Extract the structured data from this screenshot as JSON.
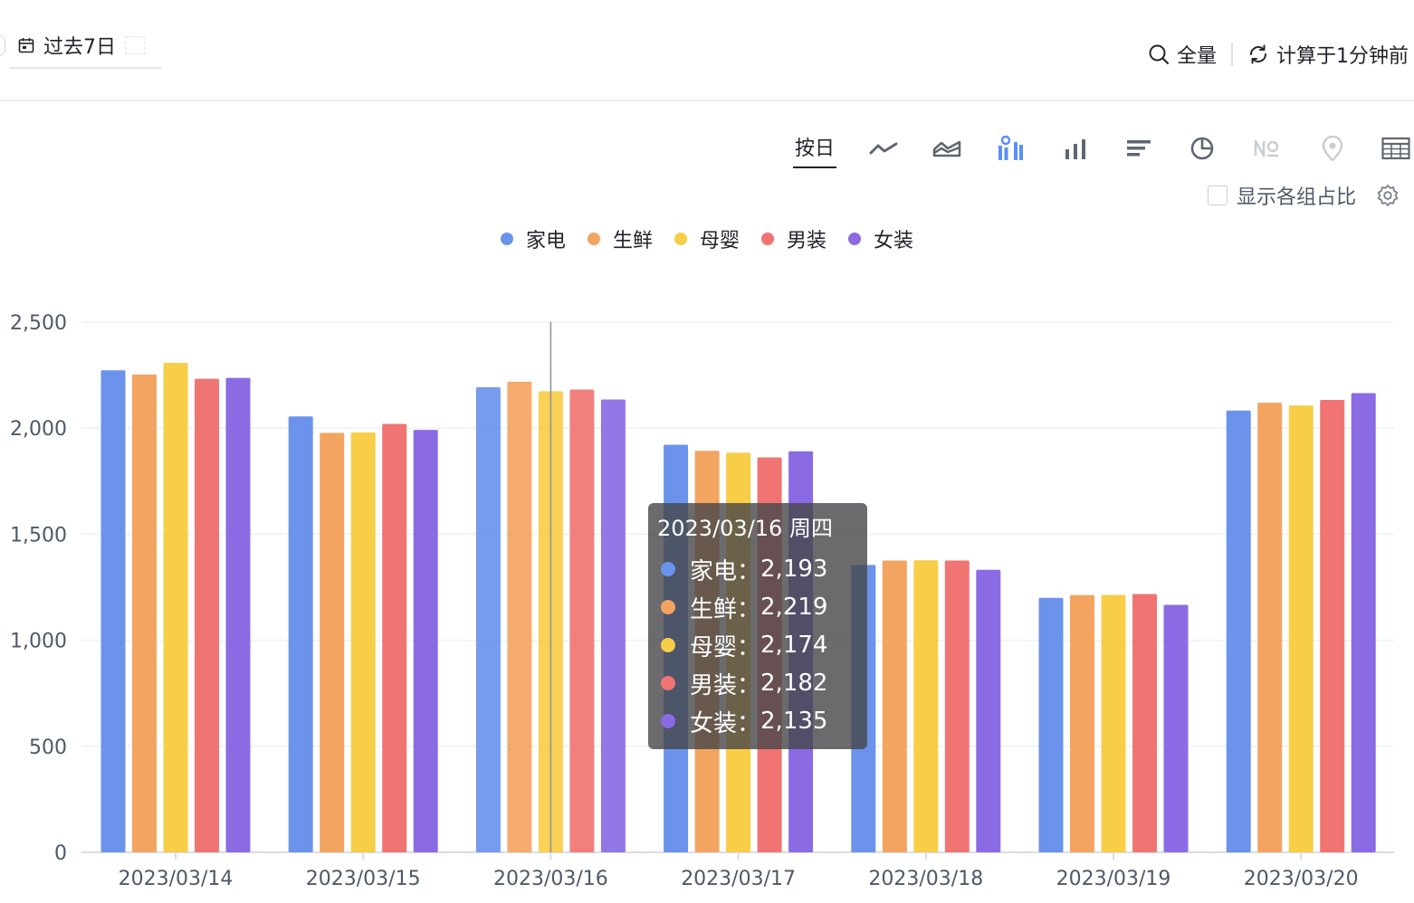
{
  "header": {
    "date_range": "过去7日",
    "search_scope": "全量",
    "refresh_status": "计算于1分钟前"
  },
  "toolbar": {
    "granularity": "按日",
    "chart_types": [
      "line-chart-icon",
      "area-chart-icon",
      "grouped-bar-chart-icon",
      "bar-chart-icon",
      "horizontal-bar-chart-icon",
      "pie-chart-icon",
      "number-card-icon",
      "map-pin-icon",
      "table-icon"
    ],
    "active_chart_type": "grouped-bar-chart-icon"
  },
  "options": {
    "show_ratio_label": "显示各组占比"
  },
  "colors": {
    "accent": "#5b8ff9",
    "series": [
      "#6b93ec",
      "#f4a461",
      "#f8cd47",
      "#f07572",
      "#8a6be4"
    ]
  },
  "chart_data": {
    "type": "bar",
    "categories": [
      "2023/03/14",
      "2023/03/15",
      "2023/03/16",
      "2023/03/17",
      "2023/03/18",
      "2023/03/19",
      "2023/03/20"
    ],
    "series": [
      {
        "name": "家电",
        "values": [
          2273,
          2055,
          2193,
          1922,
          1355,
          1200,
          2083
        ]
      },
      {
        "name": "生鲜",
        "values": [
          2253,
          1978,
          2219,
          1893,
          1376,
          1213,
          2120
        ]
      },
      {
        "name": "母婴",
        "values": [
          2308,
          1980,
          2174,
          1884,
          1377,
          1214,
          2107
        ]
      },
      {
        "name": "男装",
        "values": [
          2233,
          2020,
          2182,
          1862,
          1376,
          1218,
          2133
        ]
      },
      {
        "name": "女装",
        "values": [
          2237,
          1992,
          2135,
          1891,
          1332,
          1167,
          2165
        ]
      }
    ],
    "yticks": [
      0,
      500,
      1000,
      1500,
      2000,
      2500
    ],
    "ytick_labels": [
      "0",
      "500",
      "1,000",
      "1,500",
      "2,000",
      "2,500"
    ],
    "ylim": [
      0,
      2500
    ],
    "grid": true,
    "legend_position": "top-center",
    "hover_category_index": 2
  },
  "tooltip": {
    "title": "2023/03/16 周四",
    "rows": [
      {
        "label": "家电：",
        "value": "2,193"
      },
      {
        "label": "生鲜：",
        "value": "2,219"
      },
      {
        "label": "母婴：",
        "value": "2,174"
      },
      {
        "label": "男装：",
        "value": "2,182"
      },
      {
        "label": "女装：",
        "value": "2,135"
      }
    ]
  }
}
